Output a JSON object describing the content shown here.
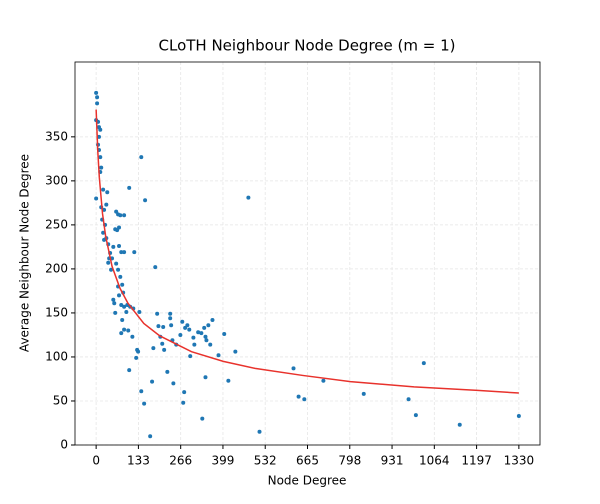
{
  "chart_data": {
    "type": "scatter",
    "title": "CLoTH Neighbour Node Degree (m = 1)",
    "x_label": "Node Degree",
    "y_label": "Average Neighbour Node Degree",
    "x": [
      0,
      3,
      3,
      0,
      6,
      9,
      13,
      9,
      6,
      9,
      13,
      16,
      13,
      0,
      22,
      16,
      25,
      19,
      22,
      32,
      38,
      35,
      32,
      25,
      28,
      44,
      38,
      47,
      41,
      50,
      54,
      54,
      57,
      60,
      63,
      69,
      76,
      60,
      66,
      72,
      88,
      72,
      79,
      88,
      63,
      69,
      76,
      69,
      82,
      72,
      85,
      79,
      88,
      95,
      82,
      79,
      88,
      101,
      104,
      98,
      107,
      117,
      120,
      114,
      104,
      126,
      132,
      129,
      142,
      154,
      136,
      142,
      151,
      170,
      176,
      180,
      186,
      192,
      196,
      202,
      211,
      208,
      214,
      224,
      233,
      233,
      236,
      240,
      243,
      252,
      265,
      271,
      280,
      274,
      277,
      287,
      293,
      296,
      306,
      309,
      321,
      331,
      340,
      344,
      347,
      353,
      359,
      366,
      385,
      344,
      334,
      403,
      416,
      438,
      479,
      514,
      621,
      637,
      655,
      715,
      842,
      983,
      1006,
      1031,
      1144,
      1330
    ],
    "y": [
      400,
      395,
      388,
      369,
      367,
      361,
      358,
      350,
      341,
      335,
      327,
      315,
      310,
      280,
      290,
      270,
      267,
      256,
      241,
      235,
      228,
      287,
      273,
      233,
      250,
      218,
      207,
      199,
      212,
      212,
      225,
      165,
      161,
      150,
      265,
      262,
      261,
      245,
      244,
      247,
      261,
      226,
      219,
      219,
      206,
      199,
      191,
      180,
      182,
      170,
      173,
      159,
      157,
      151,
      142,
      127,
      131,
      130,
      292,
      159,
      157,
      155,
      219,
      123,
      85,
      99,
      106,
      108,
      327,
      278,
      151,
      61,
      47,
      10,
      72,
      110,
      202,
      149,
      135,
      123,
      134,
      115,
      108,
      83,
      149,
      144,
      136,
      119,
      70,
      114,
      125,
      140,
      133,
      48,
      60,
      136,
      131,
      101,
      122,
      114,
      128,
      127,
      133,
      123,
      119,
      136,
      114,
      142,
      102,
      77,
      30,
      126,
      73,
      106,
      281,
      15,
      87,
      55,
      52,
      73,
      58,
      52,
      34,
      93,
      23,
      33
    ],
    "color": "#1f77b4",
    "fit": {
      "x": [
        0,
        5,
        10,
        20,
        30,
        50,
        75,
        100,
        150,
        200,
        300,
        400,
        500,
        650,
        800,
        1000,
        1200,
        1330
      ],
      "y": [
        381,
        335,
        304,
        263,
        237,
        203,
        178,
        161,
        138,
        124,
        106,
        95,
        87,
        79,
        72,
        66,
        62,
        59
      ],
      "color": "#e8322c"
    },
    "xlim": [
      -66.5,
      1396.5
    ],
    "ylim": [
      0,
      435
    ],
    "xticks": [
      0,
      133,
      266,
      399,
      532,
      665,
      798,
      931,
      1064,
      1197,
      1330
    ],
    "yticks": [
      0,
      50,
      100,
      150,
      200,
      250,
      300,
      350
    ],
    "grid": true
  }
}
